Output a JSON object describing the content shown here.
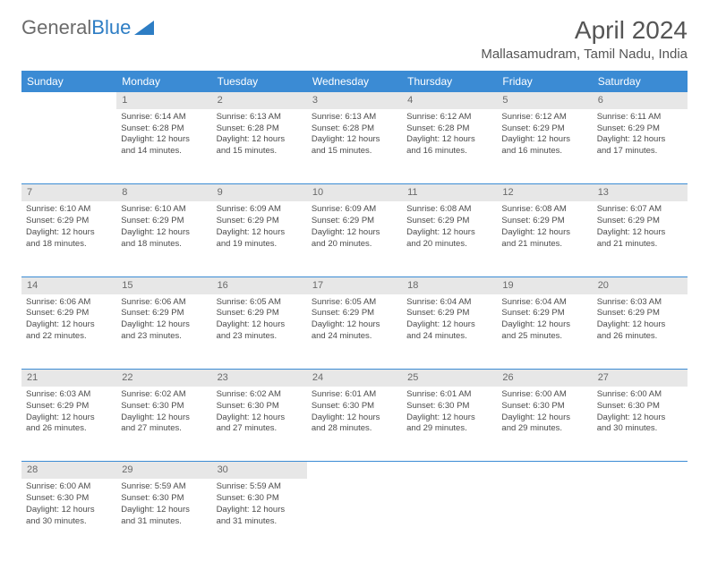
{
  "brand": {
    "part1": "General",
    "part2": "Blue"
  },
  "title": "April 2024",
  "location": "Mallasamudram, Tamil Nadu, India",
  "colors": {
    "header_bg": "#3b8bd4",
    "header_text": "#ffffff",
    "daynum_bg": "#e7e7e7",
    "daynum_text": "#6a6a6a",
    "body_text": "#4b4b4b",
    "title_text": "#555555",
    "logo_gray": "#6b6b6b",
    "logo_blue": "#2d7dc4",
    "row_border": "#3b8bd4"
  },
  "day_headers": [
    "Sunday",
    "Monday",
    "Tuesday",
    "Wednesday",
    "Thursday",
    "Friday",
    "Saturday"
  ],
  "weeks": [
    {
      "nums": [
        "",
        "1",
        "2",
        "3",
        "4",
        "5",
        "6"
      ],
      "cells": [
        null,
        {
          "sr": "Sunrise: 6:14 AM",
          "ss": "Sunset: 6:28 PM",
          "d1": "Daylight: 12 hours",
          "d2": "and 14 minutes."
        },
        {
          "sr": "Sunrise: 6:13 AM",
          "ss": "Sunset: 6:28 PM",
          "d1": "Daylight: 12 hours",
          "d2": "and 15 minutes."
        },
        {
          "sr": "Sunrise: 6:13 AM",
          "ss": "Sunset: 6:28 PM",
          "d1": "Daylight: 12 hours",
          "d2": "and 15 minutes."
        },
        {
          "sr": "Sunrise: 6:12 AM",
          "ss": "Sunset: 6:28 PM",
          "d1": "Daylight: 12 hours",
          "d2": "and 16 minutes."
        },
        {
          "sr": "Sunrise: 6:12 AM",
          "ss": "Sunset: 6:29 PM",
          "d1": "Daylight: 12 hours",
          "d2": "and 16 minutes."
        },
        {
          "sr": "Sunrise: 6:11 AM",
          "ss": "Sunset: 6:29 PM",
          "d1": "Daylight: 12 hours",
          "d2": "and 17 minutes."
        }
      ]
    },
    {
      "nums": [
        "7",
        "8",
        "9",
        "10",
        "11",
        "12",
        "13"
      ],
      "cells": [
        {
          "sr": "Sunrise: 6:10 AM",
          "ss": "Sunset: 6:29 PM",
          "d1": "Daylight: 12 hours",
          "d2": "and 18 minutes."
        },
        {
          "sr": "Sunrise: 6:10 AM",
          "ss": "Sunset: 6:29 PM",
          "d1": "Daylight: 12 hours",
          "d2": "and 18 minutes."
        },
        {
          "sr": "Sunrise: 6:09 AM",
          "ss": "Sunset: 6:29 PM",
          "d1": "Daylight: 12 hours",
          "d2": "and 19 minutes."
        },
        {
          "sr": "Sunrise: 6:09 AM",
          "ss": "Sunset: 6:29 PM",
          "d1": "Daylight: 12 hours",
          "d2": "and 20 minutes."
        },
        {
          "sr": "Sunrise: 6:08 AM",
          "ss": "Sunset: 6:29 PM",
          "d1": "Daylight: 12 hours",
          "d2": "and 20 minutes."
        },
        {
          "sr": "Sunrise: 6:08 AM",
          "ss": "Sunset: 6:29 PM",
          "d1": "Daylight: 12 hours",
          "d2": "and 21 minutes."
        },
        {
          "sr": "Sunrise: 6:07 AM",
          "ss": "Sunset: 6:29 PM",
          "d1": "Daylight: 12 hours",
          "d2": "and 21 minutes."
        }
      ]
    },
    {
      "nums": [
        "14",
        "15",
        "16",
        "17",
        "18",
        "19",
        "20"
      ],
      "cells": [
        {
          "sr": "Sunrise: 6:06 AM",
          "ss": "Sunset: 6:29 PM",
          "d1": "Daylight: 12 hours",
          "d2": "and 22 minutes."
        },
        {
          "sr": "Sunrise: 6:06 AM",
          "ss": "Sunset: 6:29 PM",
          "d1": "Daylight: 12 hours",
          "d2": "and 23 minutes."
        },
        {
          "sr": "Sunrise: 6:05 AM",
          "ss": "Sunset: 6:29 PM",
          "d1": "Daylight: 12 hours",
          "d2": "and 23 minutes."
        },
        {
          "sr": "Sunrise: 6:05 AM",
          "ss": "Sunset: 6:29 PM",
          "d1": "Daylight: 12 hours",
          "d2": "and 24 minutes."
        },
        {
          "sr": "Sunrise: 6:04 AM",
          "ss": "Sunset: 6:29 PM",
          "d1": "Daylight: 12 hours",
          "d2": "and 24 minutes."
        },
        {
          "sr": "Sunrise: 6:04 AM",
          "ss": "Sunset: 6:29 PM",
          "d1": "Daylight: 12 hours",
          "d2": "and 25 minutes."
        },
        {
          "sr": "Sunrise: 6:03 AM",
          "ss": "Sunset: 6:29 PM",
          "d1": "Daylight: 12 hours",
          "d2": "and 26 minutes."
        }
      ]
    },
    {
      "nums": [
        "21",
        "22",
        "23",
        "24",
        "25",
        "26",
        "27"
      ],
      "cells": [
        {
          "sr": "Sunrise: 6:03 AM",
          "ss": "Sunset: 6:29 PM",
          "d1": "Daylight: 12 hours",
          "d2": "and 26 minutes."
        },
        {
          "sr": "Sunrise: 6:02 AM",
          "ss": "Sunset: 6:30 PM",
          "d1": "Daylight: 12 hours",
          "d2": "and 27 minutes."
        },
        {
          "sr": "Sunrise: 6:02 AM",
          "ss": "Sunset: 6:30 PM",
          "d1": "Daylight: 12 hours",
          "d2": "and 27 minutes."
        },
        {
          "sr": "Sunrise: 6:01 AM",
          "ss": "Sunset: 6:30 PM",
          "d1": "Daylight: 12 hours",
          "d2": "and 28 minutes."
        },
        {
          "sr": "Sunrise: 6:01 AM",
          "ss": "Sunset: 6:30 PM",
          "d1": "Daylight: 12 hours",
          "d2": "and 29 minutes."
        },
        {
          "sr": "Sunrise: 6:00 AM",
          "ss": "Sunset: 6:30 PM",
          "d1": "Daylight: 12 hours",
          "d2": "and 29 minutes."
        },
        {
          "sr": "Sunrise: 6:00 AM",
          "ss": "Sunset: 6:30 PM",
          "d1": "Daylight: 12 hours",
          "d2": "and 30 minutes."
        }
      ]
    },
    {
      "nums": [
        "28",
        "29",
        "30",
        "",
        "",
        "",
        ""
      ],
      "cells": [
        {
          "sr": "Sunrise: 6:00 AM",
          "ss": "Sunset: 6:30 PM",
          "d1": "Daylight: 12 hours",
          "d2": "and 30 minutes."
        },
        {
          "sr": "Sunrise: 5:59 AM",
          "ss": "Sunset: 6:30 PM",
          "d1": "Daylight: 12 hours",
          "d2": "and 31 minutes."
        },
        {
          "sr": "Sunrise: 5:59 AM",
          "ss": "Sunset: 6:30 PM",
          "d1": "Daylight: 12 hours",
          "d2": "and 31 minutes."
        },
        null,
        null,
        null,
        null
      ]
    }
  ]
}
